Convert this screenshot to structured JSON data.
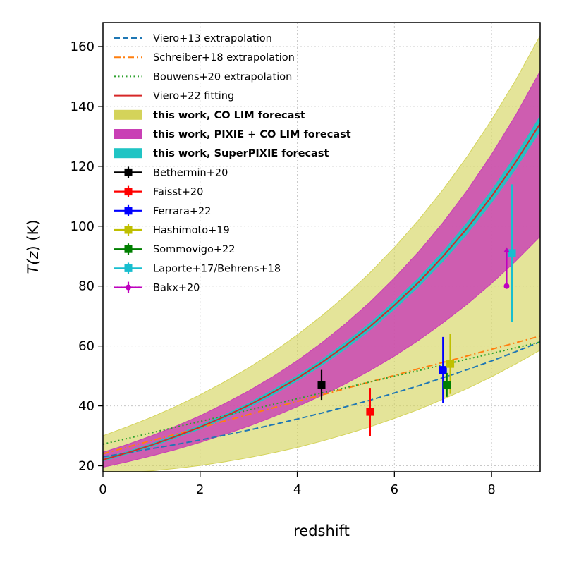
{
  "chart_data": {
    "type": "line",
    "title": "",
    "xlabel": "redshift",
    "ylabel_prefix": "T(",
    "ylabel_var": "z",
    "ylabel_suffix": ") (K)",
    "xlim": [
      0,
      9
    ],
    "ylim": [
      18,
      168
    ],
    "xticks": [
      0,
      2,
      4,
      6,
      8
    ],
    "yticks": [
      20,
      40,
      60,
      80,
      100,
      120,
      140,
      160
    ],
    "grid": true,
    "legend_position": "top-left",
    "x": [
      0,
      0.5,
      1,
      1.5,
      2,
      2.5,
      3,
      3.5,
      4,
      4.5,
      5,
      5.5,
      6,
      6.5,
      7,
      7.5,
      8,
      8.5,
      9
    ],
    "lines": [
      {
        "name": "Viero+13 extrapolation",
        "color": "#1f77b4",
        "dash": "dashed",
        "values": [
          23.0,
          24.3,
          25.7,
          27.1,
          28.6,
          30.2,
          31.9,
          33.7,
          35.6,
          37.6,
          39.7,
          41.9,
          44.3,
          46.7,
          49.4,
          52.1,
          55.0,
          58.1,
          61.4
        ]
      },
      {
        "name": "Schreiber+18 extrapolation",
        "color": "#ff7f0e",
        "dash": "dashdot",
        "values": [
          24.0,
          26.2,
          28.4,
          30.5,
          32.7,
          34.9,
          37.1,
          39.3,
          41.5,
          43.6,
          45.8,
          48.0,
          50.2,
          52.4,
          54.5,
          56.7,
          58.9,
          61.1,
          63.3
        ]
      },
      {
        "name": "Bouwens+20 extrapolation",
        "color": "#2ca02c",
        "dash": "dotted",
        "values": [
          27.2,
          29.1,
          31.0,
          32.9,
          34.8,
          36.7,
          38.6,
          40.5,
          42.4,
          44.3,
          46.1,
          48.0,
          49.9,
          51.8,
          53.7,
          55.6,
          57.5,
          59.4,
          61.3
        ]
      },
      {
        "name": "Viero+22 fitting",
        "color": "#d62728",
        "dash": "solid",
        "values": [
          22.0,
          24.3,
          26.9,
          29.8,
          32.9,
          36.4,
          40.2,
          44.5,
          49.2,
          54.4,
          60.2,
          66.5,
          73.6,
          81.3,
          89.9,
          99.4,
          109.9,
          121.5,
          134.3
        ]
      }
    ],
    "bands": [
      {
        "name": "this work, CO LIM forecast",
        "color": "#d4d35a",
        "opacity": 0.62,
        "lower": [
          17.0,
          17.6,
          18.3,
          19.1,
          20.1,
          21.3,
          22.7,
          24.3,
          26.1,
          28.2,
          30.5,
          33.0,
          35.8,
          38.8,
          42.2,
          45.8,
          49.7,
          54.0,
          58.6
        ],
        "upper": [
          30.0,
          33.0,
          36.2,
          39.8,
          43.7,
          48.0,
          52.7,
          57.9,
          63.7,
          70.0,
          76.9,
          84.5,
          92.9,
          102.1,
          112.2,
          123.3,
          135.5,
          148.9,
          163.6
        ]
      },
      {
        "name": "this work, PIXIE + CO LIM forecast",
        "color": "#c93fb5",
        "opacity": 0.82,
        "lower": [
          19.5,
          21.3,
          23.3,
          25.4,
          27.8,
          30.4,
          33.2,
          36.3,
          39.7,
          43.4,
          47.4,
          51.8,
          56.6,
          61.9,
          67.7,
          74.0,
          80.9,
          88.4,
          96.6
        ],
        "upper": [
          24.5,
          27.1,
          30.0,
          33.2,
          36.7,
          40.7,
          45.0,
          49.8,
          55.1,
          61.0,
          67.5,
          74.7,
          82.7,
          91.5,
          101.2,
          112.0,
          124.0,
          137.2,
          151.8
        ]
      },
      {
        "name": "this work, SuperPIXIE forecast",
        "color": "#20c4c4",
        "opacity": 0.95,
        "lower": [
          21.6,
          23.9,
          26.4,
          29.3,
          32.3,
          35.8,
          39.5,
          43.7,
          48.4,
          53.5,
          59.1,
          65.4,
          72.3,
          79.9,
          88.3,
          97.6,
          107.9,
          119.3,
          131.9
        ],
        "upper": [
          22.4,
          24.7,
          27.4,
          30.3,
          33.5,
          37.0,
          40.9,
          45.3,
          50.0,
          55.3,
          61.3,
          67.6,
          74.9,
          82.7,
          91.5,
          101.2,
          111.9,
          123.7,
          136.7
        ]
      }
    ],
    "points": [
      {
        "name": "Bethermin+20",
        "color": "#000000",
        "marker": "square",
        "x": 4.5,
        "y": 47,
        "yerr": [
          5,
          5
        ],
        "uplimit": false
      },
      {
        "name": "Faisst+20",
        "color": "#ff0000",
        "marker": "square",
        "x": 5.5,
        "y": 38,
        "yerr": [
          8,
          8
        ],
        "uplimit": false
      },
      {
        "name": "Ferrara+22",
        "color": "#0000ff",
        "marker": "square",
        "x": 7.0,
        "y": 52,
        "yerr": [
          11,
          11
        ],
        "uplimit": false
      },
      {
        "name": "Hashimoto+19",
        "color": "#bfbf00",
        "marker": "square",
        "x": 7.15,
        "y": 54,
        "yerr": [
          10,
          10
        ],
        "uplimit": false
      },
      {
        "name": "Sommovigo+22",
        "color": "#007f00",
        "marker": "square",
        "x": 7.08,
        "y": 47,
        "yerr": [
          4,
          4
        ],
        "uplimit": false
      },
      {
        "name": "Laporte+17/Behrens+18",
        "color": "#17becf",
        "marker": "square",
        "x": 8.42,
        "y": 91,
        "yerr": [
          23,
          23
        ],
        "uplimit": false
      },
      {
        "name": "Bakx+20",
        "color": "#bf00bf",
        "marker": "circle",
        "x": 8.31,
        "y": 80,
        "yerr": [
          0,
          13
        ],
        "uplimit": true
      }
    ],
    "legend_entries": [
      {
        "label": "Viero+13 extrapolation",
        "kind": "line",
        "color": "#1f77b4",
        "dash": "dashed",
        "bold": false
      },
      {
        "label": "Schreiber+18 extrapolation",
        "kind": "line",
        "color": "#ff7f0e",
        "dash": "dashdot",
        "bold": false
      },
      {
        "label": "Bouwens+20 extrapolation",
        "kind": "line",
        "color": "#2ca02c",
        "dash": "dotted",
        "bold": false
      },
      {
        "label": "Viero+22 fitting",
        "kind": "line",
        "color": "#d62728",
        "dash": "solid",
        "bold": false
      },
      {
        "label": "this work, CO LIM forecast",
        "kind": "patch",
        "color": "#d4d35a",
        "bold": true
      },
      {
        "label": "this work, PIXIE + CO LIM forecast",
        "kind": "patch",
        "color": "#c93fb5",
        "bold": true
      },
      {
        "label": "this work, SuperPIXIE forecast",
        "kind": "patch",
        "color": "#20c4c4",
        "bold": true
      },
      {
        "label": "Bethermin+20",
        "kind": "errorbar",
        "color": "#000000",
        "marker": "square",
        "bold": false
      },
      {
        "label": "Faisst+20",
        "kind": "errorbar",
        "color": "#ff0000",
        "marker": "square",
        "bold": false
      },
      {
        "label": "Ferrara+22",
        "kind": "errorbar",
        "color": "#0000ff",
        "marker": "square",
        "bold": false
      },
      {
        "label": "Hashimoto+19",
        "kind": "errorbar",
        "color": "#bfbf00",
        "marker": "square",
        "bold": false
      },
      {
        "label": "Sommovigo+22",
        "kind": "errorbar",
        "color": "#007f00",
        "marker": "square",
        "bold": false
      },
      {
        "label": "Laporte+17/Behrens+18",
        "kind": "errorbar",
        "color": "#17becf",
        "marker": "square",
        "bold": false
      },
      {
        "label": "Bakx+20",
        "kind": "errorbar",
        "color": "#bf00bf",
        "marker": "circle",
        "bold": false
      }
    ]
  }
}
